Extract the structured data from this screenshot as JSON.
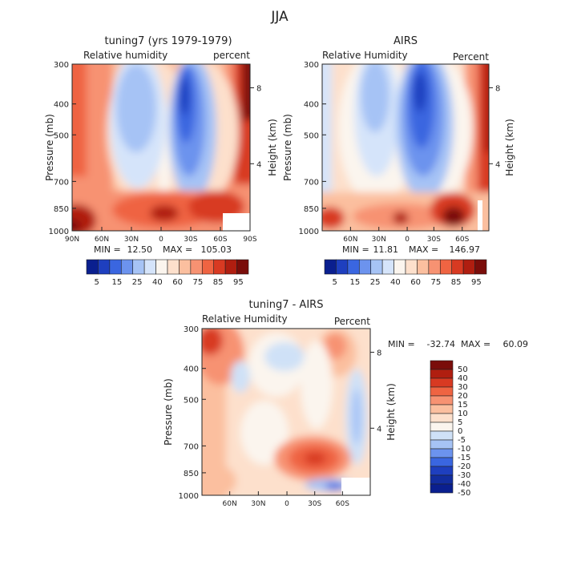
{
  "figure": {
    "title": "JJA"
  },
  "chart_data": [
    {
      "type": "heatmap",
      "title": "tuning7 (yrs 1979-1979)",
      "subtitle_left": "Relative humidity",
      "subtitle_right": "percent",
      "ylabel": "Pressure (mb)",
      "ylabel_right": "Height (km)",
      "yticks": [
        "300",
        "400",
        "500",
        "700",
        "850",
        "1000"
      ],
      "yticks_right": [
        "8",
        "4"
      ],
      "xticks": [
        "90N",
        "60N",
        "30N",
        "0",
        "30S",
        "60S",
        "90S"
      ],
      "min_label": "MIN =",
      "min_value": "12.50",
      "max_label": "MAX =",
      "max_value": "105.03",
      "colorbar_labels": [
        "5",
        "15",
        "25",
        "40",
        "60",
        "75",
        "85",
        "95"
      ]
    },
    {
      "type": "heatmap",
      "title": "AIRS",
      "subtitle_left": "Relative Humidity",
      "subtitle_right": "Percent",
      "ylabel": "Pressure (mb)",
      "ylabel_right": "Height (km)",
      "yticks": [
        "300",
        "400",
        "500",
        "700",
        "850",
        "1000"
      ],
      "yticks_right": [
        "8",
        "4"
      ],
      "xticks": [
        "60N",
        "30N",
        "0",
        "30S",
        "60S"
      ],
      "min_label": "MIN =",
      "min_value": "11.81",
      "max_label": "MAX =",
      "max_value": "146.97",
      "colorbar_labels": [
        "5",
        "15",
        "25",
        "40",
        "60",
        "75",
        "85",
        "95"
      ]
    },
    {
      "type": "heatmap",
      "title": "tuning7 - AIRS",
      "subtitle_left": "Relative Humidity",
      "subtitle_right": "Percent",
      "ylabel": "Pressure (mb)",
      "ylabel_right": "Height (km)",
      "yticks": [
        "300",
        "400",
        "500",
        "700",
        "850",
        "1000"
      ],
      "yticks_right": [
        "8",
        "4"
      ],
      "xticks": [
        "60N",
        "30N",
        "0",
        "30S",
        "60S"
      ],
      "min_label": "MIN =",
      "min_value": "-32.74",
      "max_label": "MAX =",
      "max_value": "60.09",
      "colorbar_labels": [
        "50",
        "40",
        "30",
        "20",
        "15",
        "10",
        "5",
        "0",
        "-5",
        "-10",
        "-15",
        "-20",
        "-30",
        "-40",
        "-50"
      ]
    }
  ],
  "palettes": {
    "rh": [
      "#0a1f8f",
      "#1e3fbf",
      "#3a66e0",
      "#6c93ee",
      "#a6c3f5",
      "#d5e4fa",
      "#fbf5ee",
      "#fde0cc",
      "#fbbf9f",
      "#f79272",
      "#ef6442",
      "#d83a22",
      "#b01e10",
      "#7a0d0a"
    ],
    "diff": [
      "#7a0d0a",
      "#b01e10",
      "#d83a22",
      "#ef6442",
      "#f79272",
      "#fbbf9f",
      "#fde0cc",
      "#fbf5ee",
      "#cfe1f7",
      "#a6c3f5",
      "#6c93ee",
      "#3a66e0",
      "#1e3fbf",
      "#122d9f",
      "#0a1f8f"
    ]
  }
}
